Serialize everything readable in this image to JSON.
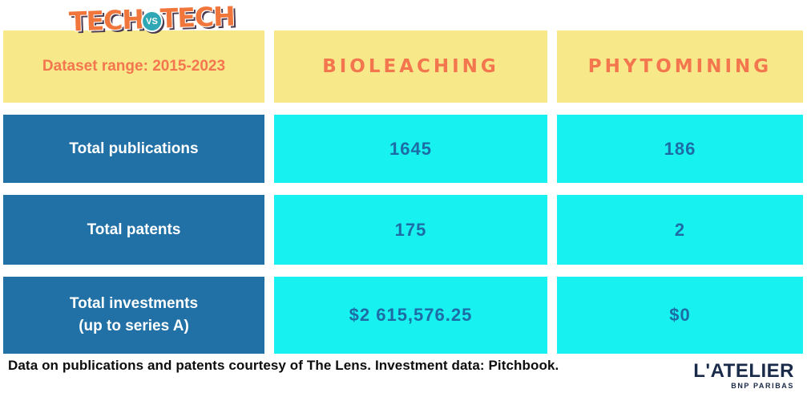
{
  "logo": {
    "word1": "TECH",
    "vs": "VS",
    "word2": "TECH"
  },
  "table": {
    "header": {
      "range_label": "Dataset range: 2015-2023",
      "col_bioleaching": "BIOLEACHING",
      "col_phytomining": "PHYTOMINING"
    },
    "rows": [
      {
        "label": "Total publications",
        "bioleaching": "1645",
        "phytomining": "186"
      },
      {
        "label": "Total patents",
        "bioleaching": "175",
        "phytomining": "2"
      },
      {
        "label_line1": "Total investments",
        "label_line2": "(up to series A)",
        "bioleaching": "$2 615,576.25",
        "phytomining": "$0"
      }
    ]
  },
  "footer": {
    "caption": "Data on publications and patents courtesy of The Lens. Investment data: Pitchbook."
  },
  "brand": {
    "name": "L'ATELIER",
    "sub": "BNP PARIBAS"
  },
  "colors": {
    "header_yellow": "#f7e98a",
    "header_orange_text": "#f4764f",
    "label_blue": "#2171a6",
    "value_cyan": "#17f1ef",
    "value_text_blue": "#1d6ca5",
    "brand_navy": "#1a2a49",
    "logo_orange": "#f0763c",
    "logo_circle_teal": "#2fa7b4"
  },
  "chart_data": {
    "type": "table",
    "title": "TECH vs TECH",
    "subtitle": "Dataset range: 2015-2023",
    "columns": [
      "BIOLEACHING",
      "PHYTOMINING"
    ],
    "rows": [
      {
        "metric": "Total publications",
        "bioleaching": 1645,
        "phytomining": 186
      },
      {
        "metric": "Total patents",
        "bioleaching": 175,
        "phytomining": 2
      },
      {
        "metric": "Total investments (up to series A)",
        "bioleaching": "$2 615,576.25",
        "phytomining": "$0"
      }
    ],
    "source": "Data on publications and patents courtesy of The Lens. Investment data: Pitchbook."
  }
}
